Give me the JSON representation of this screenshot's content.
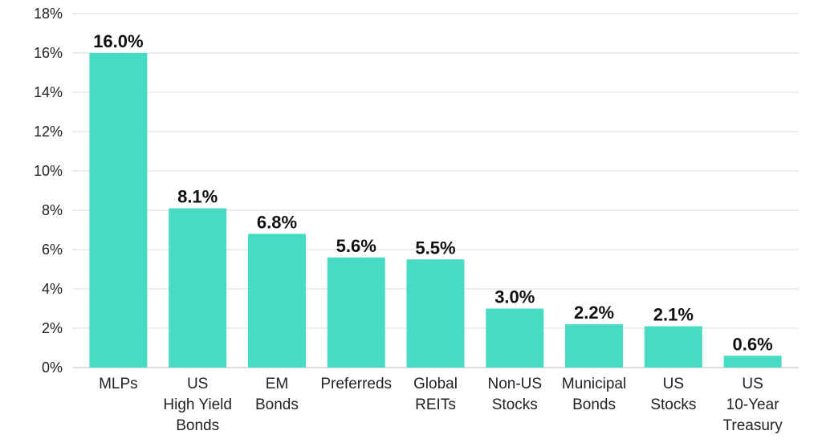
{
  "chart_data": {
    "type": "bar",
    "categories": [
      [
        "MLPs"
      ],
      [
        "US",
        "High Yield",
        "Bonds"
      ],
      [
        "EM",
        "Bonds"
      ],
      [
        "Preferreds"
      ],
      [
        "Global",
        "REITs"
      ],
      [
        "Non-US",
        "Stocks"
      ],
      [
        "Municipal",
        "Bonds"
      ],
      [
        "US",
        "Stocks"
      ],
      [
        "US",
        "10-Year",
        "Treasury"
      ]
    ],
    "values": [
      16.0,
      8.1,
      6.8,
      5.6,
      5.5,
      3.0,
      2.2,
      2.1,
      0.6
    ],
    "data_labels": [
      "16.0%",
      "8.1%",
      "6.8%",
      "5.6%",
      "5.5%",
      "3.0%",
      "2.2%",
      "2.1%",
      "0.6%"
    ],
    "y_ticks": [
      "0%",
      "2%",
      "4%",
      "6%",
      "8%",
      "10%",
      "12%",
      "14%",
      "16%",
      "18%"
    ],
    "ylim": [
      0,
      18
    ],
    "grid": true,
    "legend": "none",
    "bar_color": "#48dbc4"
  }
}
